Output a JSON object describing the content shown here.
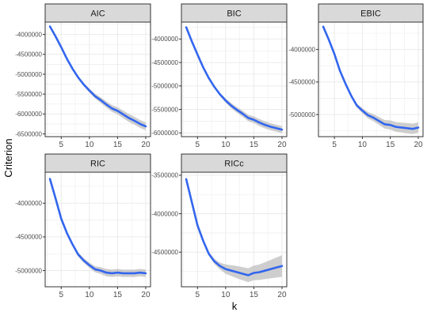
{
  "axis": {
    "xlabel": "k",
    "ylabel": "Criterion"
  },
  "style": {
    "line_color": "#3366ee",
    "ribbon_color": "#bdbdbd",
    "strip_fill": "#d9d9d9",
    "grid_color": "#ebebeb",
    "panel_border": "#333333"
  },
  "chart_data": [
    {
      "type": "line",
      "title": "AIC",
      "x": [
        3,
        4,
        5,
        6,
        7,
        8,
        9,
        10,
        11,
        12,
        13,
        14,
        15,
        16,
        17,
        18,
        19,
        20
      ],
      "y": [
        -3800000,
        -4050000,
        -4320000,
        -4610000,
        -4860000,
        -5080000,
        -5260000,
        -5410000,
        -5550000,
        -5650000,
        -5760000,
        -5860000,
        -5920000,
        -6010000,
        -6100000,
        -6170000,
        -6250000,
        -6310000
      ],
      "ribbon_half_width": [
        5000,
        5000,
        5000,
        10000,
        15000,
        25000,
        35000,
        50000,
        60000,
        70000,
        80000,
        85000,
        90000,
        95000,
        100000,
        100000,
        100000,
        100000
      ],
      "ylim": [
        -6570000,
        -3690000
      ],
      "xlim": [
        2.15,
        20.85
      ],
      "xticks": [
        5,
        10,
        15,
        20
      ],
      "yticks": [
        -4000000,
        -4500000,
        -5000000,
        -5500000,
        -6000000,
        -6500000
      ],
      "ytick_labels": [
        "-4000000",
        "-4500000",
        "-5000000",
        "-5500000",
        "-6000000",
        "-6500000"
      ]
    },
    {
      "type": "line",
      "title": "BIC",
      "x": [
        3,
        4,
        5,
        6,
        7,
        8,
        9,
        10,
        11,
        12,
        13,
        14,
        15,
        16,
        17,
        18,
        19,
        20
      ],
      "y": [
        -3750000,
        -4050000,
        -4330000,
        -4600000,
        -4830000,
        -5020000,
        -5180000,
        -5310000,
        -5420000,
        -5510000,
        -5590000,
        -5680000,
        -5720000,
        -5780000,
        -5830000,
        -5870000,
        -5900000,
        -5930000
      ],
      "ribbon_half_width": [
        5000,
        5000,
        5000,
        10000,
        15000,
        25000,
        35000,
        45000,
        55000,
        60000,
        65000,
        70000,
        70000,
        75000,
        75000,
        75000,
        75000,
        75000
      ],
      "ylim": [
        -6080000,
        -3640000
      ],
      "xlim": [
        2.15,
        20.85
      ],
      "xticks": [
        5,
        10,
        15,
        20
      ],
      "yticks": [
        -4000000,
        -4500000,
        -5000000,
        -5500000,
        -6000000
      ],
      "ytick_labels": [
        "-4000000",
        "-4500000",
        "-5000000",
        "-5500000",
        "-6000000"
      ]
    },
    {
      "type": "line",
      "title": "EBIC",
      "x": [
        3,
        4,
        5,
        6,
        7,
        8,
        9,
        10,
        11,
        12,
        13,
        14,
        15,
        16,
        17,
        18,
        19,
        20
      ],
      "y": [
        -3650000,
        -3850000,
        -4070000,
        -4330000,
        -4530000,
        -4710000,
        -4860000,
        -4940000,
        -5010000,
        -5050000,
        -5100000,
        -5150000,
        -5160000,
        -5190000,
        -5200000,
        -5210000,
        -5220000,
        -5200000
      ],
      "ribbon_half_width": [
        5000,
        5000,
        5000,
        10000,
        15000,
        20000,
        30000,
        40000,
        50000,
        55000,
        60000,
        65000,
        70000,
        75000,
        75000,
        80000,
        80000,
        80000
      ],
      "ylim": [
        -5340000,
        -3580000
      ],
      "xlim": [
        2.15,
        20.85
      ],
      "xticks": [
        5,
        10,
        15,
        20
      ],
      "yticks": [
        -4000000,
        -4500000,
        -5000000
      ],
      "ytick_labels": [
        "-4000000",
        "-4500000",
        "-5000000"
      ]
    },
    {
      "type": "line",
      "title": "RIC",
      "x": [
        3,
        4,
        5,
        6,
        7,
        8,
        9,
        10,
        11,
        12,
        13,
        14,
        15,
        16,
        17,
        18,
        19,
        20
      ],
      "y": [
        -3640000,
        -3930000,
        -4230000,
        -4440000,
        -4610000,
        -4760000,
        -4850000,
        -4920000,
        -4980000,
        -5000000,
        -5030000,
        -5040000,
        -5030000,
        -5040000,
        -5040000,
        -5040000,
        -5030000,
        -5040000
      ],
      "ribbon_half_width": [
        5000,
        5000,
        10000,
        15000,
        20000,
        30000,
        35000,
        40000,
        45000,
        50000,
        55000,
        55000,
        55000,
        55000,
        55000,
        55000,
        55000,
        55000
      ],
      "ylim": [
        -5240000,
        -3540000
      ],
      "xlim": [
        2.15,
        20.85
      ],
      "xticks": [
        5,
        10,
        15,
        20
      ],
      "yticks": [
        -4000000,
        -4500000,
        -5000000
      ],
      "ytick_labels": [
        "-4000000",
        "-4500000",
        "-5000000"
      ]
    },
    {
      "type": "line",
      "title": "RICc",
      "x": [
        3,
        4,
        5,
        6,
        7,
        8,
        9,
        10,
        11,
        12,
        13,
        14,
        15,
        16,
        17,
        18,
        19,
        20
      ],
      "y": [
        -3550000,
        -3850000,
        -4150000,
        -4350000,
        -4520000,
        -4620000,
        -4680000,
        -4720000,
        -4740000,
        -4760000,
        -4780000,
        -4800000,
        -4770000,
        -4760000,
        -4740000,
        -4720000,
        -4700000,
        -4680000
      ],
      "ribbon_half_width": [
        5000,
        5000,
        10000,
        15000,
        25000,
        35000,
        45000,
        60000,
        70000,
        80000,
        85000,
        90000,
        95000,
        100000,
        110000,
        120000,
        130000,
        140000
      ],
      "ylim": [
        -4950000,
        -3460000
      ],
      "xlim": [
        2.15,
        20.85
      ],
      "xticks": [
        5,
        10,
        15,
        20
      ],
      "yticks": [
        -3500000,
        -4000000,
        -4500000
      ],
      "ytick_labels": [
        "-3500000",
        "-4000000",
        "-4500000"
      ]
    }
  ]
}
